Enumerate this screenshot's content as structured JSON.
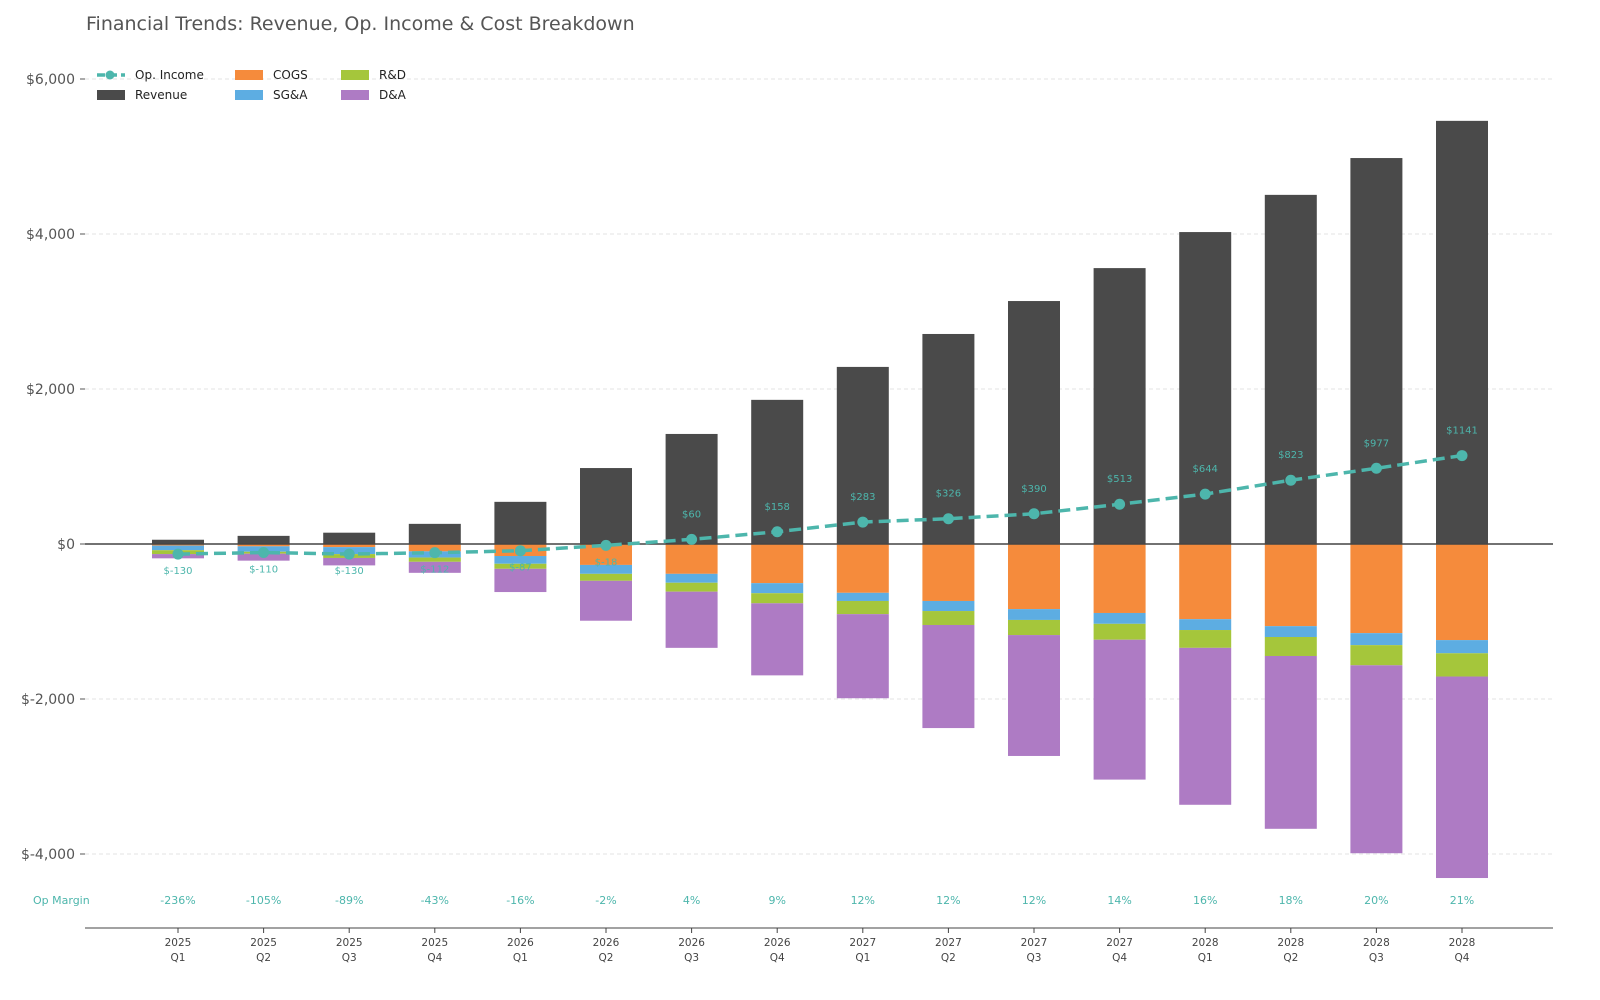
{
  "chart_data": {
    "type": "bar",
    "title": "Financial Trends: Revenue, Op. Income & Cost Breakdown",
    "xlabel": "",
    "ylabel": "",
    "ylim": [
      -4300,
      6000
    ],
    "yticks": [
      6000,
      4000,
      2000,
      0,
      -2000,
      -4000
    ],
    "ytick_labels": [
      "$6,000",
      "$4,000",
      "$2,000",
      "$0",
      "$-2,000",
      "$-4,000"
    ],
    "grid": true,
    "legend_position": "top-left",
    "categories": [
      [
        "2025",
        "Q1"
      ],
      [
        "2025",
        "Q2"
      ],
      [
        "2025",
        "Q3"
      ],
      [
        "2025",
        "Q4"
      ],
      [
        "2026",
        "Q1"
      ],
      [
        "2026",
        "Q2"
      ],
      [
        "2026",
        "Q3"
      ],
      [
        "2026",
        "Q4"
      ],
      [
        "2027",
        "Q1"
      ],
      [
        "2027",
        "Q2"
      ],
      [
        "2027",
        "Q3"
      ],
      [
        "2027",
        "Q4"
      ],
      [
        "2028",
        "Q1"
      ],
      [
        "2028",
        "Q2"
      ],
      [
        "2028",
        "Q3"
      ],
      [
        "2028",
        "Q4"
      ]
    ],
    "series": [
      {
        "name": "Revenue",
        "kind": "bar",
        "color": "#4a4a4a",
        "values": [
          55,
          105,
          146,
          260,
          544,
          980,
          1420,
          1860,
          2285,
          2710,
          3135,
          3560,
          4025,
          4505,
          4980,
          5460
        ]
      },
      {
        "name": "COGS",
        "kind": "stacked-negative",
        "color": "#f58b3c",
        "values": [
          20,
          30,
          40,
          95,
          155,
          270,
          385,
          505,
          630,
          735,
          840,
          890,
          970,
          1060,
          1150,
          1240
        ]
      },
      {
        "name": "SG&A",
        "kind": "stacked-negative",
        "color": "#5dade2",
        "values": [
          60,
          70,
          90,
          80,
          100,
          115,
          115,
          130,
          105,
          130,
          140,
          140,
          140,
          140,
          155,
          170
        ]
      },
      {
        "name": "R&D",
        "kind": "stacked-negative",
        "color": "#a5c63b",
        "values": [
          50,
          25,
          50,
          55,
          65,
          90,
          115,
          130,
          170,
          180,
          195,
          205,
          230,
          245,
          260,
          300
        ]
      },
      {
        "name": "D&A",
        "kind": "stacked-negative",
        "color": "#ae7bc4",
        "values": [
          55,
          90,
          96,
          142,
          300,
          515,
          725,
          930,
          1085,
          1330,
          1560,
          1805,
          2025,
          2230,
          2425,
          2600
        ]
      },
      {
        "name": "Op. Income",
        "kind": "line",
        "color": "#4db6ac",
        "values": [
          -130,
          -110,
          -130,
          -112,
          -87,
          -18,
          60,
          158,
          283,
          326,
          390,
          513,
          644,
          823,
          977,
          1141
        ],
        "labels": [
          "$-130",
          "$-110",
          "$-130",
          "$-112",
          "$-87",
          "$-18",
          "$60",
          "$158",
          "$283",
          "$326",
          "$390",
          "$513",
          "$644",
          "$823",
          "$977",
          "$1141"
        ]
      }
    ],
    "op_margin": {
      "label": "Op Margin",
      "values": [
        "-236%",
        "-105%",
        "-89%",
        "-43%",
        "-16%",
        "-2%",
        "4%",
        "9%",
        "12%",
        "12%",
        "12%",
        "14%",
        "16%",
        "18%",
        "20%",
        "21%"
      ]
    },
    "legend": [
      {
        "name": "Op. Income",
        "color": "#4db6ac",
        "kind": "line"
      },
      {
        "name": "Revenue",
        "color": "#4a4a4a",
        "kind": "box"
      },
      {
        "name": "COGS",
        "color": "#f58b3c",
        "kind": "box"
      },
      {
        "name": "SG&A",
        "color": "#5dade2",
        "kind": "box"
      },
      {
        "name": "R&D",
        "color": "#a5c63b",
        "kind": "box"
      },
      {
        "name": "D&A",
        "color": "#ae7bc4",
        "kind": "box"
      }
    ]
  }
}
